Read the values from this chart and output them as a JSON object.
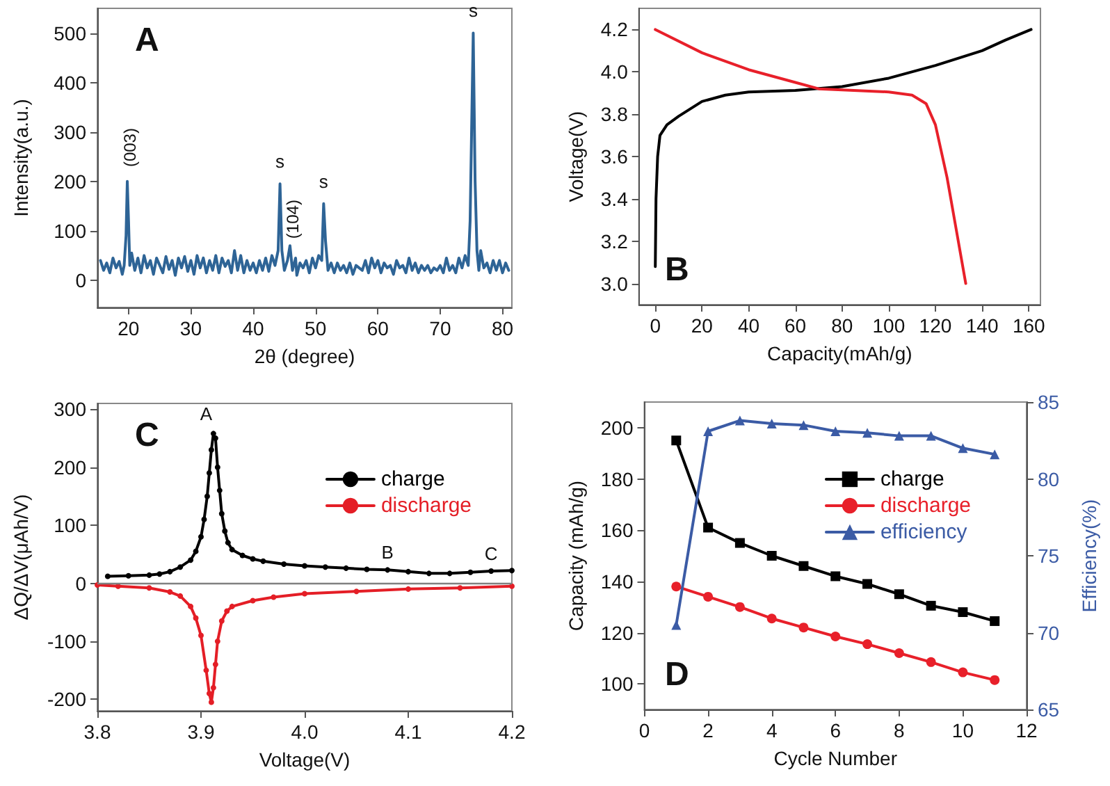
{
  "chart_data": [
    {
      "type": "line",
      "title": "A",
      "xlabel": "2θ (degree)",
      "ylabel": "Intensity(a.u.)",
      "xlim": [
        15,
        81.5
      ],
      "ylim": [
        -55,
        550
      ],
      "xticks": [
        20,
        30,
        40,
        50,
        60,
        70,
        80
      ],
      "yticks": [
        0,
        100,
        200,
        300,
        400,
        500
      ],
      "grid": false,
      "legend": false,
      "marker": "none",
      "x": [
        15.5,
        16,
        16.5,
        17,
        17.5,
        18,
        18.5,
        19,
        19.3,
        19.6,
        19.8,
        20.0,
        20.2,
        20.5,
        21,
        21.5,
        22,
        22.5,
        23,
        23.5,
        24,
        24.5,
        25,
        25.5,
        26,
        26.5,
        27,
        27.5,
        28,
        28.5,
        29,
        29.5,
        30,
        30.5,
        31,
        31.5,
        32,
        32.5,
        33,
        33.5,
        34,
        34.5,
        35,
        35.5,
        36,
        36.5,
        37,
        37.5,
        38,
        38.5,
        39,
        39.5,
        40,
        40.5,
        41,
        41.5,
        42,
        42.5,
        43,
        43.5,
        44,
        44.3,
        44.6,
        45,
        45.5,
        45.9,
        46.3,
        46.8,
        47,
        47.5,
        48,
        48.5,
        49,
        49.5,
        50,
        50.5,
        51,
        51.3,
        51.6,
        52,
        52.5,
        53,
        53.5,
        54,
        54.5,
        55,
        55.5,
        56,
        56.5,
        57,
        57.5,
        58,
        58.5,
        59,
        59.5,
        60,
        60.5,
        61,
        61.5,
        62,
        62.5,
        63,
        63.5,
        64,
        64.5,
        65,
        65.5,
        66,
        66.5,
        67,
        67.5,
        68,
        68.5,
        69,
        69.5,
        70,
        70.5,
        71,
        71.5,
        72,
        72.5,
        73,
        73.5,
        74,
        74.5,
        74.8,
        75.1,
        75.3,
        75.6,
        75.9,
        76.2,
        76.5,
        77,
        77.5,
        78,
        78.5,
        79,
        79.5,
        80,
        80.5,
        81
      ],
      "series": [
        {
          "color": "#2e6496",
          "values": [
            40,
            20,
            35,
            15,
            45,
            25,
            38,
            12,
            30,
            90,
            200,
            120,
            30,
            55,
            20,
            45,
            15,
            50,
            25,
            40,
            12,
            45,
            30,
            15,
            48,
            22,
            40,
            10,
            45,
            25,
            48,
            18,
            40,
            12,
            50,
            25,
            45,
            15,
            40,
            20,
            50,
            15,
            45,
            28,
            40,
            15,
            60,
            20,
            50,
            15,
            40,
            20,
            35,
            15,
            40,
            20,
            45,
            18,
            50,
            30,
            60,
            195,
            60,
            20,
            40,
            70,
            20,
            45,
            10,
            35,
            25,
            40,
            15,
            45,
            25,
            50,
            40,
            155,
            80,
            20,
            35,
            15,
            35,
            20,
            30,
            15,
            35,
            12,
            30,
            25,
            20,
            40,
            15,
            45,
            25,
            40,
            15,
            35,
            25,
            30,
            12,
            40,
            25,
            30,
            15,
            45,
            20,
            35,
            15,
            30,
            20,
            30,
            15,
            25,
            20,
            30,
            15,
            45,
            20,
            30,
            15,
            45,
            25,
            50,
            30,
            120,
            350,
            500,
            200,
            60,
            20,
            60,
            25,
            35,
            15,
            40,
            20,
            40,
            15,
            35,
            20
          ]
        }
      ],
      "annotations": [
        {
          "text": "(003)",
          "x": 19.8,
          "y": 215
        },
        {
          "text": "s",
          "x": 44.3,
          "y": 205
        },
        {
          "text": "(104)",
          "x": 45.9,
          "y": 70
        },
        {
          "text": "s",
          "x": 51.3,
          "y": 165
        },
        {
          "text": "s",
          "x": 75.3,
          "y": 510
        }
      ]
    },
    {
      "type": "line",
      "title": "B",
      "xlabel": "Capacity(mAh/g)",
      "ylabel": "Voltage(V)",
      "xlim": [
        -7,
        165
      ],
      "ylim": [
        2.9,
        4.3
      ],
      "xticks": [
        0,
        20,
        40,
        60,
        80,
        100,
        120,
        140,
        160
      ],
      "yticks": [
        {
          "value": 3,
          "label": "3.0"
        },
        3.2,
        3.4,
        3.6,
        3.8,
        {
          "value": 4,
          "label": "4.0"
        },
        4.2
      ],
      "grid": false,
      "legend": false,
      "marker": "none",
      "series": [
        {
          "color": "#000000",
          "x": [
            0,
            0.3,
            1,
            2,
            5,
            10,
            20,
            30,
            40,
            60,
            80,
            100,
            120,
            140,
            150,
            161
          ],
          "values": [
            3.08,
            3.4,
            3.6,
            3.7,
            3.75,
            3.79,
            3.86,
            3.89,
            3.905,
            3.912,
            3.93,
            3.97,
            4.03,
            4.1,
            4.15,
            4.2
          ]
        },
        {
          "color": "#e8202a",
          "x": [
            0,
            20,
            40,
            60,
            70,
            80,
            100,
            110,
            116,
            120,
            125,
            129,
            133
          ],
          "values": [
            4.2,
            4.09,
            4.01,
            3.95,
            3.92,
            3.915,
            3.905,
            3.89,
            3.85,
            3.75,
            3.5,
            3.25,
            3.0
          ]
        }
      ]
    },
    {
      "type": "line",
      "title": "C",
      "xlabel": "Voltage(V)",
      "ylabel": "ΔQ/ΔV(μAh/V)",
      "xlim": [
        3.8,
        4.2
      ],
      "ylim": [
        -220,
        310
      ],
      "xticks": [
        3.8,
        3.9,
        {
          "value": 4,
          "label": "4.0"
        },
        4.1,
        4.2
      ],
      "yticks": [
        -200,
        -100,
        0,
        100,
        200,
        300
      ],
      "grid": false,
      "legend": "top right",
      "marker": "circle",
      "ref_lines": [
        {
          "axis": "y",
          "value": 0,
          "color": "#808080"
        }
      ],
      "series": [
        {
          "name": "charge",
          "color": "#000000",
          "x": [
            3.81,
            3.83,
            3.85,
            3.86,
            3.87,
            3.88,
            3.89,
            3.895,
            3.9,
            3.903,
            3.906,
            3.908,
            3.91,
            3.912,
            3.914,
            3.916,
            3.918,
            3.92,
            3.923,
            3.926,
            3.93,
            3.94,
            3.95,
            3.96,
            3.98,
            4.0,
            4.02,
            4.04,
            4.06,
            4.08,
            4.1,
            4.12,
            4.14,
            4.16,
            4.18,
            4.2
          ],
          "values": [
            12,
            13,
            14,
            16,
            20,
            28,
            40,
            55,
            80,
            110,
            150,
            190,
            230,
            258,
            250,
            200,
            160,
            120,
            90,
            70,
            58,
            48,
            42,
            38,
            33,
            30,
            28,
            26,
            24,
            23,
            20,
            17,
            17,
            19,
            21,
            22
          ]
        },
        {
          "name": "discharge",
          "color": "#e41e26",
          "x": [
            3.8,
            3.82,
            3.85,
            3.87,
            3.88,
            3.89,
            3.895,
            3.9,
            3.905,
            3.908,
            3.91,
            3.912,
            3.914,
            3.916,
            3.92,
            3.925,
            3.93,
            3.95,
            3.97,
            4.0,
            4.05,
            4.1,
            4.15,
            4.2
          ],
          "values": [
            -3,
            -5,
            -8,
            -15,
            -22,
            -40,
            -60,
            -90,
            -150,
            -190,
            -205,
            -180,
            -140,
            -100,
            -65,
            -48,
            -40,
            -30,
            -24,
            -18,
            -14,
            -10,
            -8,
            -5
          ]
        }
      ],
      "annotations": [
        {
          "text": "A",
          "x": 3.905,
          "y": 262
        },
        {
          "text": "B",
          "x": 4.08,
          "y": 23
        },
        {
          "text": "C",
          "x": 4.18,
          "y": 21
        }
      ]
    },
    {
      "type": "line",
      "title": "D",
      "xlabel": "Cycle Number",
      "ylabel": "Capacity (mAh/g)",
      "y2label": "Efficiency(%)",
      "xlim": [
        0,
        12
      ],
      "ylim": [
        90,
        210
      ],
      "y2lim": [
        65,
        85
      ],
      "xticks": [
        0,
        2,
        4,
        6,
        8,
        10,
        12
      ],
      "yticks": [
        100,
        120,
        140,
        160,
        180,
        200
      ],
      "y2ticks": [
        65,
        70,
        75,
        80,
        85
      ],
      "grid": false,
      "legend": "right",
      "x": [
        1,
        2,
        3,
        4,
        5,
        6,
        7,
        8,
        9,
        10,
        11
      ],
      "series": [
        {
          "name": "charge",
          "color": "#000000",
          "marker": "square",
          "values": [
            195,
            161,
            155,
            150,
            146,
            142,
            139,
            135,
            130.5,
            128,
            124.5
          ]
        },
        {
          "name": "discharge",
          "color": "#e8202a",
          "marker": "circle",
          "values": [
            138,
            134,
            130,
            125.5,
            122,
            118.5,
            115.5,
            112,
            108.5,
            104.5,
            101.5
          ]
        },
        {
          "name": "efficiency",
          "color": "#3b5ba5",
          "marker": "triangle",
          "axis": "y2",
          "values": [
            70.5,
            83.1,
            83.8,
            83.6,
            83.5,
            83.1,
            83.0,
            82.8,
            82.8,
            82.0,
            81.6
          ]
        }
      ]
    }
  ]
}
